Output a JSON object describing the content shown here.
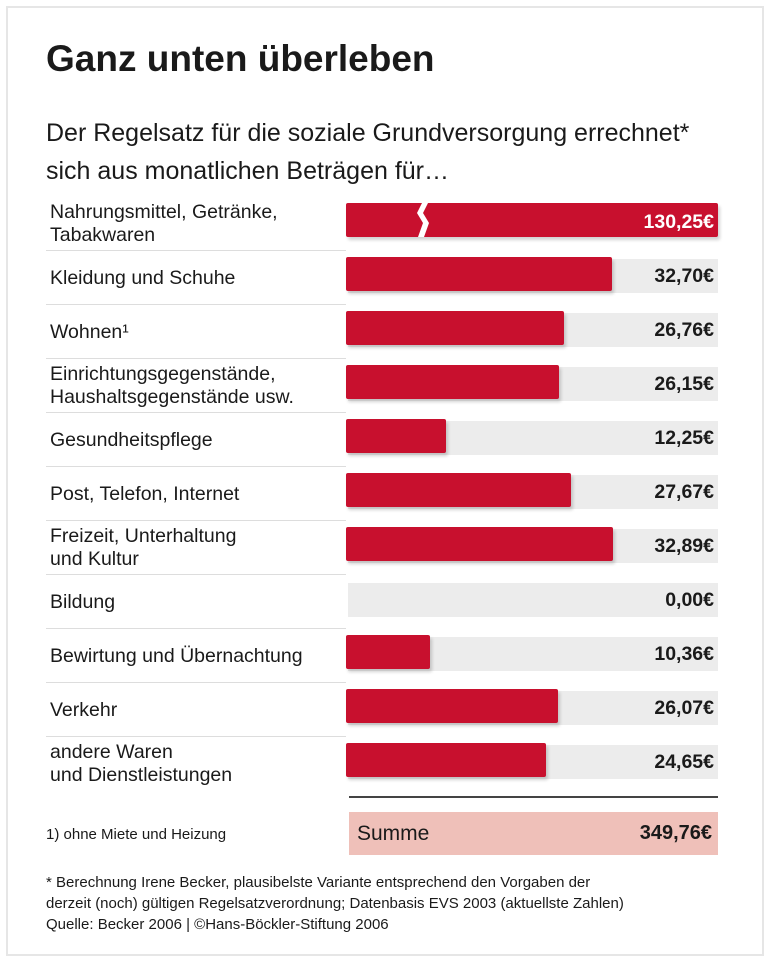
{
  "chart_data": {
    "type": "bar",
    "orientation": "horizontal",
    "title": "Ganz unten überleben",
    "subtitle": "Der Regelsatz für die soziale Grundversorgung errechnet* sich aus monatlichen Beträgen für…",
    "unit": "€",
    "categories": [
      "Nahrungsmittel, Getränke,\nTabakwaren",
      "Kleidung und Schuhe",
      "Wohnen¹",
      "Einrichtungsgegenstände,\nHaushaltsgegenstände usw.",
      "Gesundheitspflege",
      "Post, Telefon, Internet",
      "Freizeit, Unterhaltung\nund Kultur",
      "Bildung",
      "Bewirtung und Übernachtung",
      "Verkehr",
      "andere Waren\nund Dienstleistungen"
    ],
    "values": [
      130.25,
      32.7,
      26.76,
      26.15,
      12.25,
      27.67,
      32.89,
      0.0,
      10.36,
      26.07,
      24.65
    ],
    "value_labels": [
      "130,25€",
      "32,70€",
      "26,76€",
      "26,15€",
      "12,25€",
      "27,67€",
      "32,89€",
      "0,00€",
      "10,36€",
      "26,07€",
      "24,65€"
    ],
    "broken_axis_bar": 0,
    "bar_color": "#c8102e",
    "track_color": "#ececec",
    "total": {
      "label": "Summe",
      "value": 349.76,
      "value_label": "349,76€",
      "color": "#efc0b9"
    },
    "footnotes": [
      "1) ohne Miete und Heizung",
      "* Berechnung Irene Becker, plausibelste Variante entsprechend den Vorgaben der\nderzeit (noch) gültigen Regelsatzverordnung; Datenbasis EVS 2003 (aktuellste Zahlen)\nQuelle: Becker 2006 | ©Hans-Böckler-Stiftung 2006"
    ]
  }
}
